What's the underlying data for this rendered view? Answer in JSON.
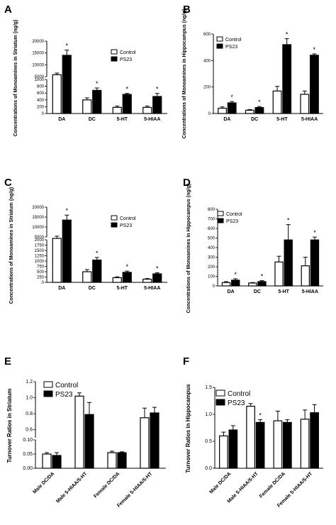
{
  "figure": {
    "panels": [
      {
        "letter": "A"
      },
      {
        "letter": "B"
      },
      {
        "letter": "C"
      },
      {
        "letter": "D"
      },
      {
        "letter": "E"
      },
      {
        "letter": "F"
      }
    ]
  },
  "chart_data": [
    {
      "panel": "A",
      "type": "bar",
      "title": "",
      "ylabel": "Concentrations of Monoamines in Striatum (ng/g)",
      "xlabel": "",
      "categories": [
        "DA",
        "DC",
        "5-HT",
        "5-HIAA"
      ],
      "series": [
        {
          "name": "Control",
          "values": [
            5800,
            400,
            180,
            180
          ],
          "errors": [
            700,
            60,
            40,
            40
          ]
        },
        {
          "name": "PS23",
          "values": [
            14000,
            680,
            560,
            500
          ],
          "errors": [
            2200,
            70,
            30,
            90
          ]
        }
      ],
      "significance": [
        "*",
        "*",
        "*",
        "*"
      ],
      "axis_break": {
        "lower": [
          0,
          1000
        ],
        "upper": [
          5000,
          20000
        ]
      },
      "yticks_lower": [
        0,
        200,
        400,
        600,
        800,
        1000
      ],
      "yticks_upper": [
        5000,
        10000,
        15000,
        20000
      ],
      "legend_position": "top-right",
      "colors": {
        "control": "#ffffff",
        "ps23": "#000000"
      }
    },
    {
      "panel": "B",
      "type": "bar",
      "title": "",
      "ylabel": "Concentrations of Monoamines in Hippocampus (ng/g)",
      "xlabel": "",
      "categories": [
        "DA",
        "DC",
        "5-HT",
        "5-HIAA"
      ],
      "series": [
        {
          "name": "Control",
          "values": [
            40,
            25,
            170,
            145
          ],
          "errors": [
            10,
            5,
            35,
            25
          ]
        },
        {
          "name": "PS23",
          "values": [
            80,
            45,
            520,
            440
          ],
          "errors": [
            10,
            8,
            45,
            10
          ]
        }
      ],
      "significance": [
        "*",
        "*",
        "*",
        "*"
      ],
      "ylim": [
        0,
        600
      ],
      "yticks": [
        0,
        200,
        400,
        600
      ],
      "legend_position": "top-left"
    },
    {
      "panel": "C",
      "type": "bar",
      "title": "",
      "ylabel": "Concentrations of Monoamines in Striatum (ng/g)",
      "xlabel": "",
      "categories": [
        "DA",
        "DC",
        "5-HT",
        "5-HIAA"
      ],
      "series": [
        {
          "name": "Control",
          "values": [
            4800,
            500,
            220,
            150
          ],
          "errors": [
            600,
            100,
            40,
            30
          ]
        },
        {
          "name": "PS23",
          "values": [
            13500,
            1050,
            470,
            400
          ],
          "errors": [
            2500,
            120,
            60,
            50
          ]
        }
      ],
      "significance": [
        "*",
        "*",
        "*",
        "*"
      ],
      "axis_break": {
        "lower": [
          0,
          2000
        ],
        "upper": [
          5000,
          20000
        ]
      },
      "yticks_lower": [
        0,
        250,
        500,
        750,
        1000,
        1250,
        1500,
        1750,
        2000
      ],
      "yticks_upper": [
        5000,
        10000,
        15000,
        20000
      ],
      "legend_position": "top-right"
    },
    {
      "panel": "D",
      "type": "bar",
      "title": "",
      "ylabel": "Concentrations of Monoamines in Hippocampus (ng/g)",
      "xlabel": "",
      "categories": [
        "DA",
        "DC",
        "5-HT",
        "5-HIAA"
      ],
      "series": [
        {
          "name": "Control",
          "values": [
            35,
            30,
            250,
            210
          ],
          "errors": [
            10,
            5,
            60,
            90
          ]
        },
        {
          "name": "PS23",
          "values": [
            60,
            45,
            480,
            480
          ],
          "errors": [
            15,
            10,
            160,
            30
          ]
        }
      ],
      "significance": [
        "*",
        "*",
        "*",
        "*"
      ],
      "ylim": [
        0,
        800
      ],
      "yticks": [
        0,
        100,
        200,
        300,
        400,
        500,
        600,
        700,
        800
      ],
      "legend_position": "top-left"
    },
    {
      "panel": "E",
      "type": "bar",
      "title": "",
      "ylabel": "Turnover Ratios in Striatum",
      "xlabel": "",
      "categories": [
        "Male DC/DA",
        "Male 5-HIAA/5-HT",
        "Female DC/DA",
        "Female 5-HIAA/5-HT"
      ],
      "series": [
        {
          "name": "Control",
          "values": [
            0.05,
            1.02,
            0.055,
            0.75
          ],
          "errors": [
            0.005,
            0.04,
            0.005,
            0.12
          ]
        },
        {
          "name": "PS23",
          "values": [
            0.045,
            0.79,
            0.055,
            0.81
          ],
          "errors": [
            0.01,
            0.15,
            0.003,
            0.07
          ]
        }
      ],
      "axis_break": {
        "lower": [
          0,
          0.1
        ],
        "upper": [
          0.5,
          1.2
        ]
      },
      "yticks_lower": [
        0.0,
        0.05,
        0.1
      ],
      "yticks_upper": [
        0.6,
        0.8,
        1.0,
        1.2
      ],
      "legend_position": "top-left"
    },
    {
      "panel": "F",
      "type": "bar",
      "title": "",
      "ylabel": "Turnover Ratios in Hippocampus",
      "xlabel": "",
      "categories": [
        "Male DC/DA",
        "Male 5-HIAA/5-HT",
        "Female DC/DA",
        "Female 5-HIAA/5-HT"
      ],
      "series": [
        {
          "name": "Control",
          "values": [
            0.6,
            1.15,
            0.88,
            0.91
          ],
          "errors": [
            0.07,
            0.05,
            0.18,
            0.17
          ]
        },
        {
          "name": "PS23",
          "values": [
            0.71,
            0.85,
            0.85,
            1.03
          ],
          "errors": [
            0.08,
            0.05,
            0.05,
            0.15
          ]
        }
      ],
      "significance": [
        "",
        "*",
        "",
        ""
      ],
      "ylim": [
        0,
        1.5
      ],
      "yticks": [
        0.0,
        0.5,
        1.0,
        1.5
      ],
      "legend_position": "top-left"
    }
  ]
}
